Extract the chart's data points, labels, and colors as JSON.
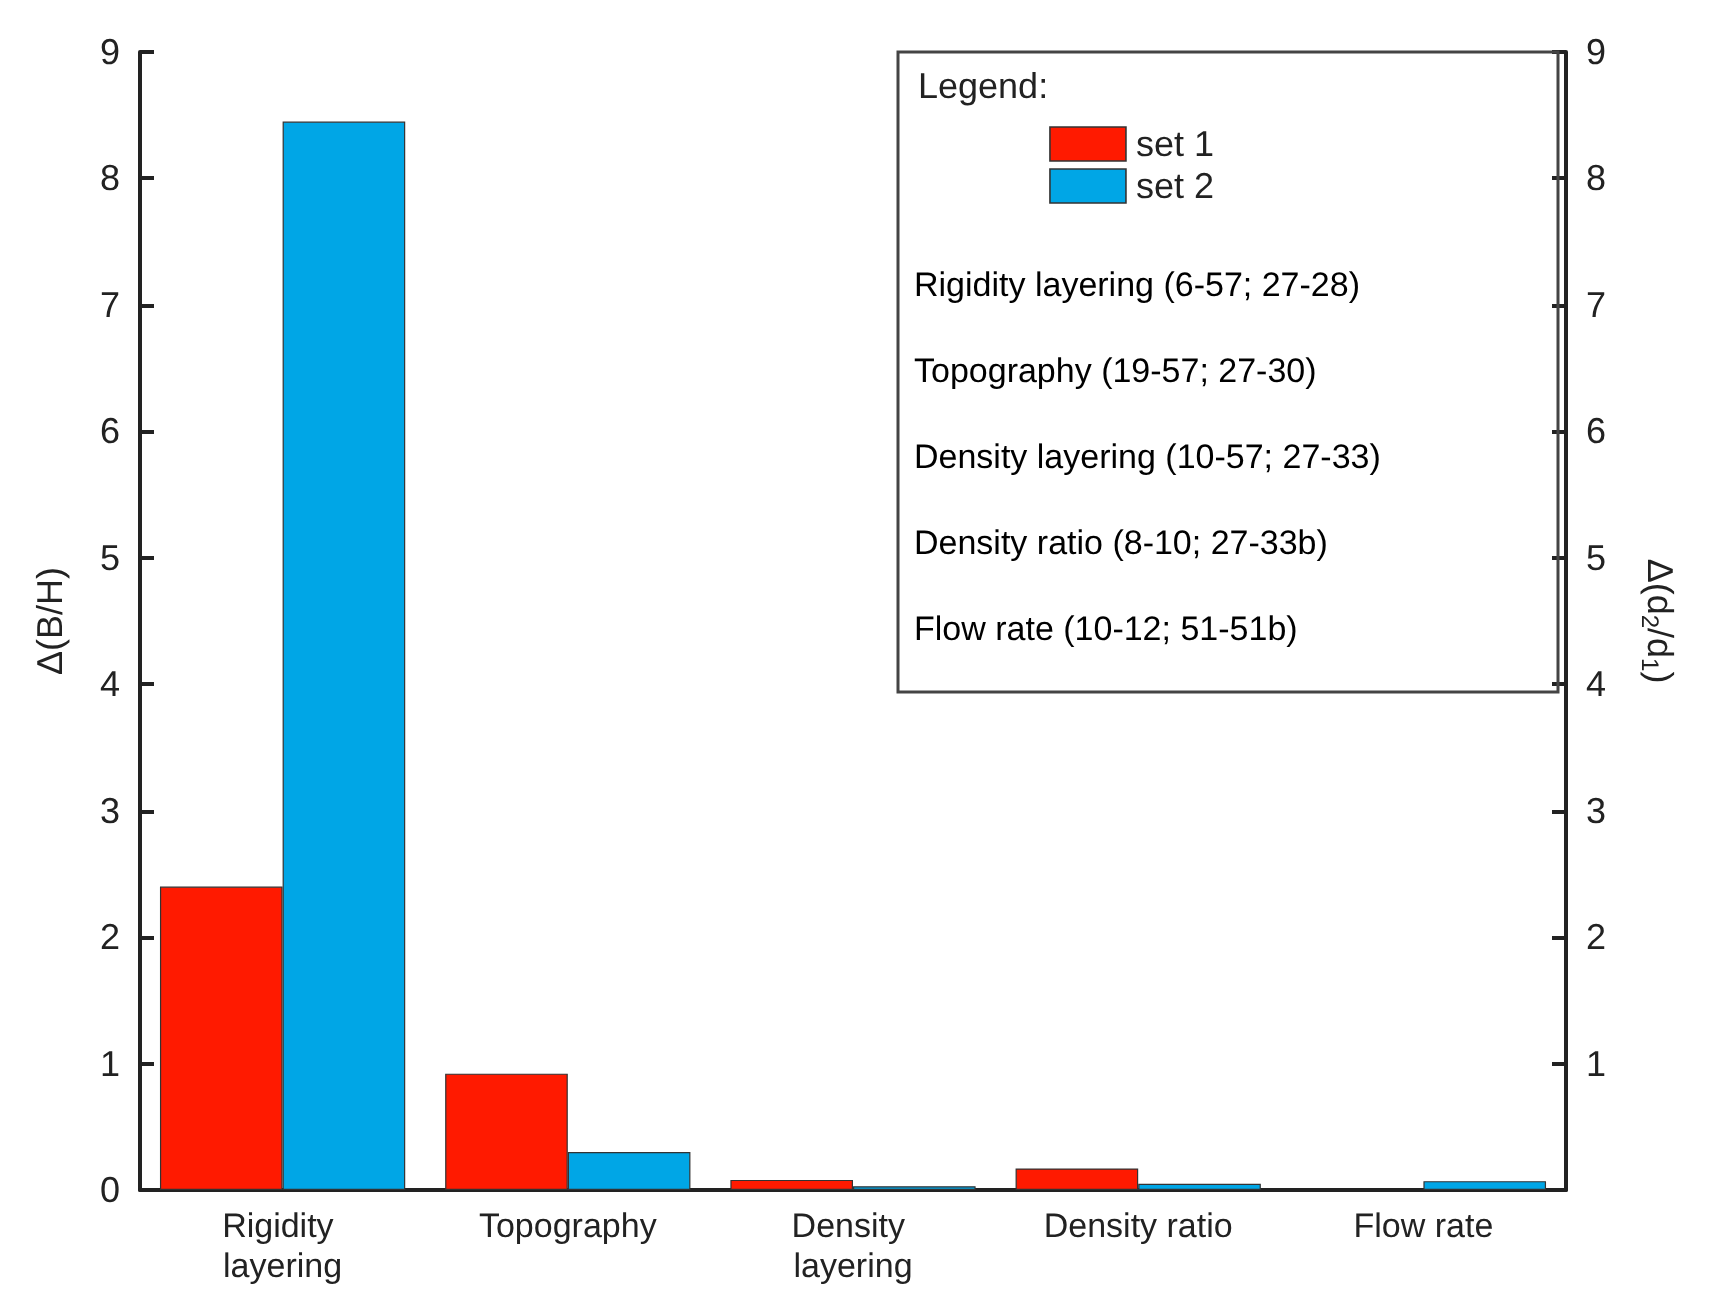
{
  "chart_data": {
    "type": "bar",
    "categories": [
      "Rigidity layering",
      "Topography",
      "Density layering",
      "Density ratio",
      "Flow rate"
    ],
    "series": [
      {
        "name": "set 1",
        "color": "#ff1a00",
        "values": [
          2.4,
          0.92,
          0.08,
          0.17,
          0
        ]
      },
      {
        "name": "set 2",
        "color": "#00a6e6",
        "values": [
          8.45,
          0.3,
          0.03,
          0.05,
          0.07
        ]
      }
    ],
    "ylabel": "Δ(B/H)",
    "y2label": "Δ(d$_{2}$/d$_{1}$)",
    "ylim": [
      0,
      9
    ],
    "yticks": [
      0,
      1,
      2,
      3,
      4,
      5,
      6,
      7,
      8,
      9
    ],
    "y2lim": [
      0,
      9
    ],
    "y2ticks": [
      1,
      2,
      3,
      4,
      5,
      6,
      7,
      8,
      9
    ],
    "legend_title": "Legend:",
    "annotations": [
      "Rigidity layering (6-57; 27-28)",
      "Topography (19-57; 27-30)",
      "Density layering (10-57; 27-33)",
      "Density ratio (8-10; 27-33b)",
      "Flow rate (10-12; 51-51b)"
    ],
    "legend": "top right",
    "grid": false
  }
}
